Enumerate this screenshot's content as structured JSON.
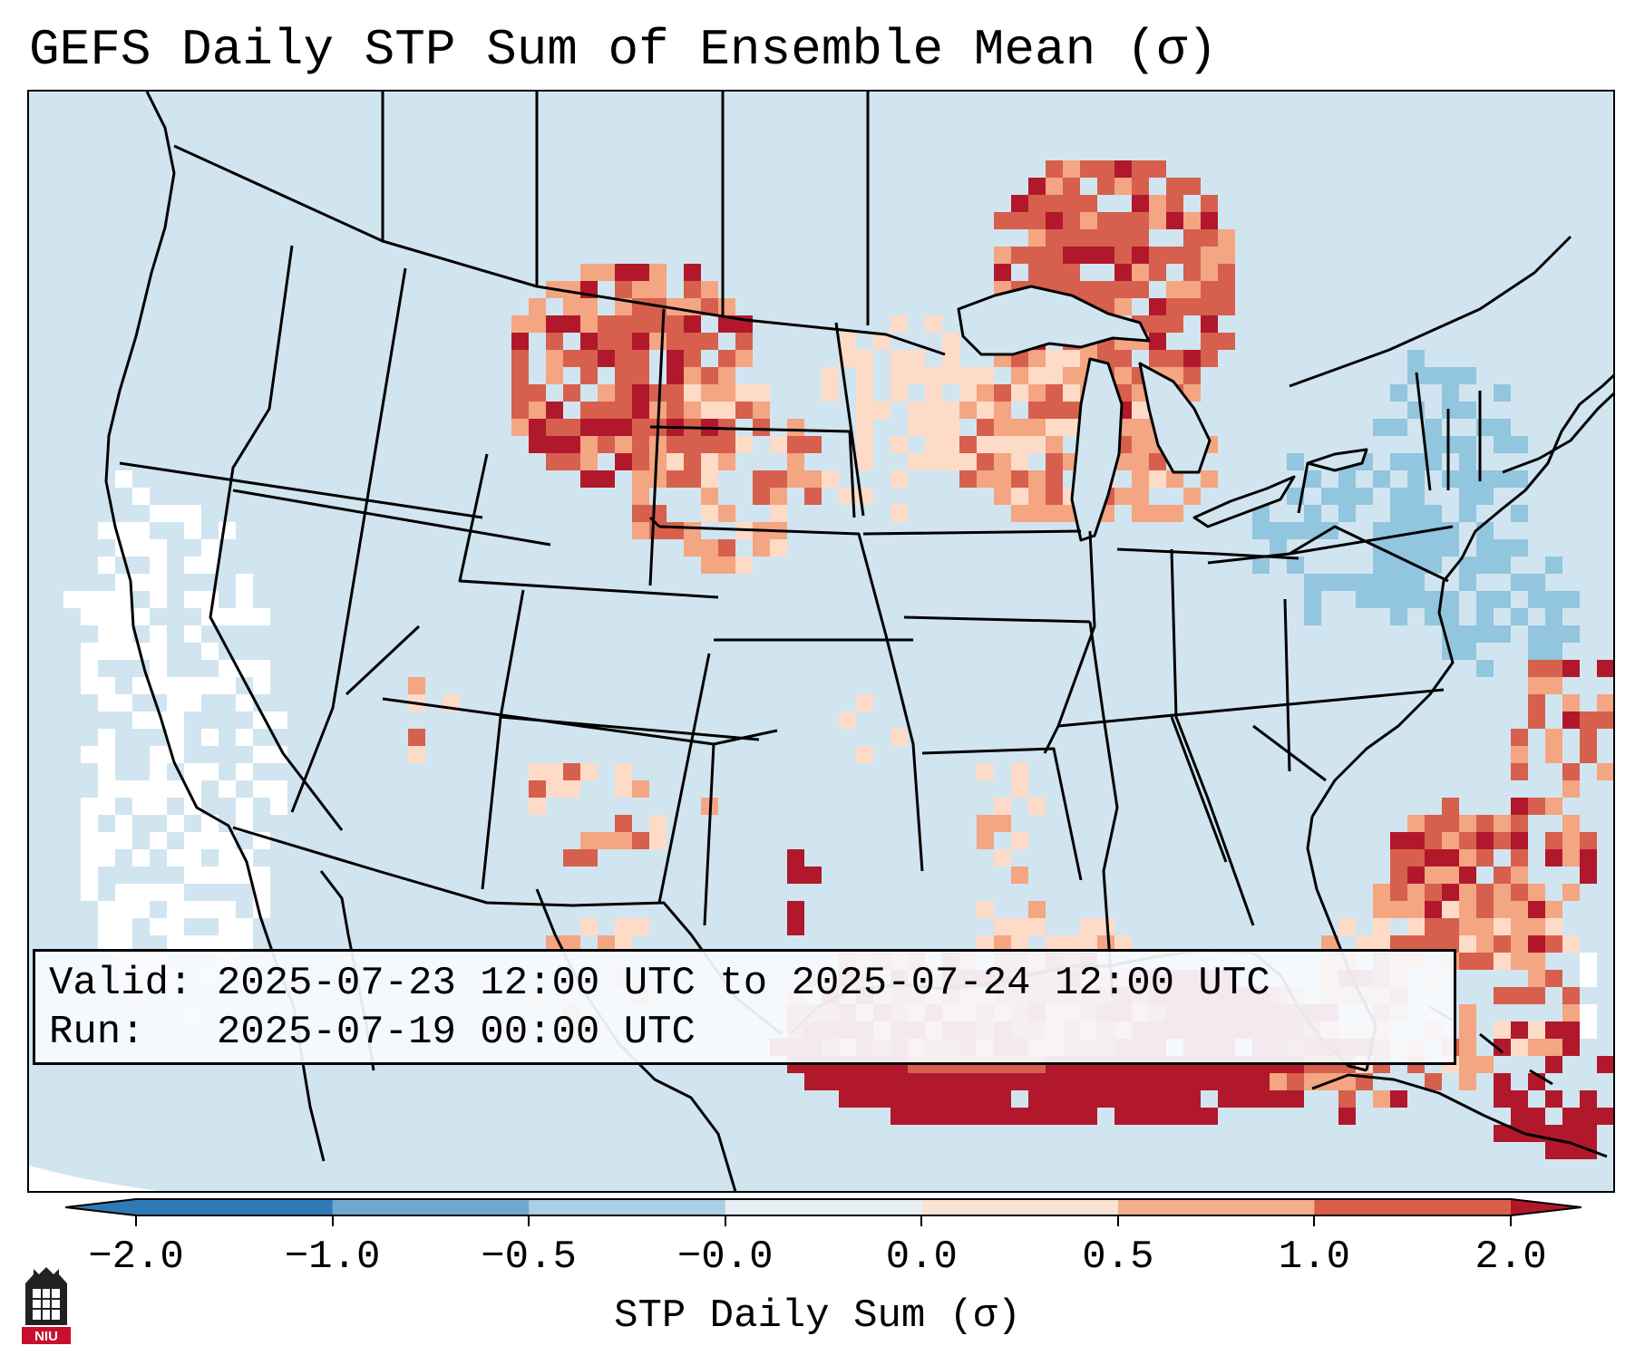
{
  "title": "GEFS Daily STP Sum of Ensemble Mean (σ)",
  "info": {
    "valid_key": "Valid:",
    "valid_value": "2025-07-23 12:00 UTC to 2025-07-24 12:00 UTC",
    "run_key": "Run:",
    "run_value": "2025-07-19 00:00 UTC"
  },
  "colorbar": {
    "label": "STP Daily Sum (σ)",
    "ticks": [
      "−2.0",
      "−1.0",
      "−0.5",
      "−0.0",
      "0.0",
      "0.5",
      "1.0",
      "2.0"
    ],
    "bins": [
      {
        "color": "#2f79b5"
      },
      {
        "color": "#6da9cf"
      },
      {
        "color": "#abcfe3"
      },
      {
        "color": "#e5eff4"
      },
      {
        "color": "#fbe3d4"
      },
      {
        "color": "#f5ad8c"
      },
      {
        "color": "#d95f4a"
      }
    ],
    "under_color": "#2f79b5",
    "over_color": "#b2182b"
  },
  "logo": {
    "text": "NIU"
  },
  "map_colors": {
    "background": "#d1e5f0",
    "outside_domain": "#ffffff",
    "neutral_cells": "#ffffff",
    "low_negative": "#92c5de",
    "mid_negative": "#6da9cf",
    "slight_positive": "#fddbc7",
    "moderate_positive": "#f4a582",
    "high_positive": "#d6604d",
    "extreme_positive": "#b2182b"
  }
}
